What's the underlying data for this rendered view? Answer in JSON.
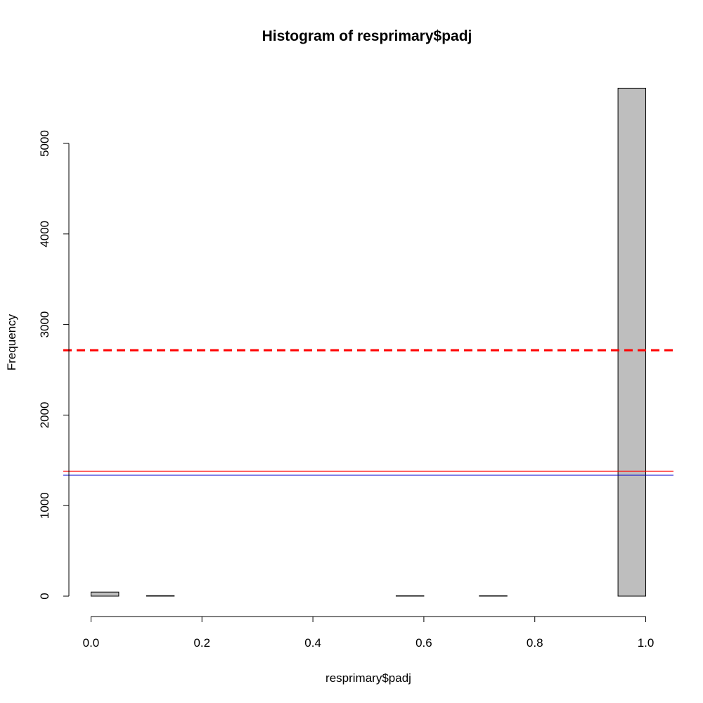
{
  "chart_data": {
    "type": "bar",
    "title": "Histogram of resprimary$padj",
    "xlabel": "resprimary$padj",
    "ylabel": "Frequency",
    "xlim": [
      -0.05,
      1.05
    ],
    "ylim": [
      0,
      5600
    ],
    "x_ticks": [
      "0.0",
      "0.2",
      "0.4",
      "0.6",
      "0.8",
      "1.0"
    ],
    "y_ticks": [
      "0",
      "1000",
      "2000",
      "3000",
      "4000",
      "5000"
    ],
    "grid": false,
    "bins": [
      {
        "start": 0.0,
        "end": 0.05,
        "count": 45
      },
      {
        "start": 0.05,
        "end": 0.1,
        "count": 0
      },
      {
        "start": 0.1,
        "end": 0.15,
        "count": 5
      },
      {
        "start": 0.15,
        "end": 0.2,
        "count": 0
      },
      {
        "start": 0.2,
        "end": 0.25,
        "count": 0
      },
      {
        "start": 0.25,
        "end": 0.3,
        "count": 0
      },
      {
        "start": 0.3,
        "end": 0.35,
        "count": 0
      },
      {
        "start": 0.35,
        "end": 0.4,
        "count": 0
      },
      {
        "start": 0.4,
        "end": 0.45,
        "count": 0
      },
      {
        "start": 0.45,
        "end": 0.5,
        "count": 0
      },
      {
        "start": 0.5,
        "end": 0.55,
        "count": 0
      },
      {
        "start": 0.55,
        "end": 0.6,
        "count": 4
      },
      {
        "start": 0.6,
        "end": 0.65,
        "count": 0
      },
      {
        "start": 0.65,
        "end": 0.7,
        "count": 0
      },
      {
        "start": 0.7,
        "end": 0.75,
        "count": 4
      },
      {
        "start": 0.75,
        "end": 0.8,
        "count": 0
      },
      {
        "start": 0.8,
        "end": 0.85,
        "count": 0
      },
      {
        "start": 0.85,
        "end": 0.9,
        "count": 0
      },
      {
        "start": 0.9,
        "end": 0.95,
        "count": 0
      },
      {
        "start": 0.95,
        "end": 1.0,
        "count": 5610
      }
    ],
    "bar_fill": "#bebebe",
    "hlines": [
      {
        "y": 2715,
        "color": "#ff0000",
        "style": "dashed"
      },
      {
        "y": 1380,
        "color": "#ff0000",
        "style": "solid"
      },
      {
        "y": 1335,
        "color": "#0000cd",
        "style": "solid"
      }
    ]
  }
}
